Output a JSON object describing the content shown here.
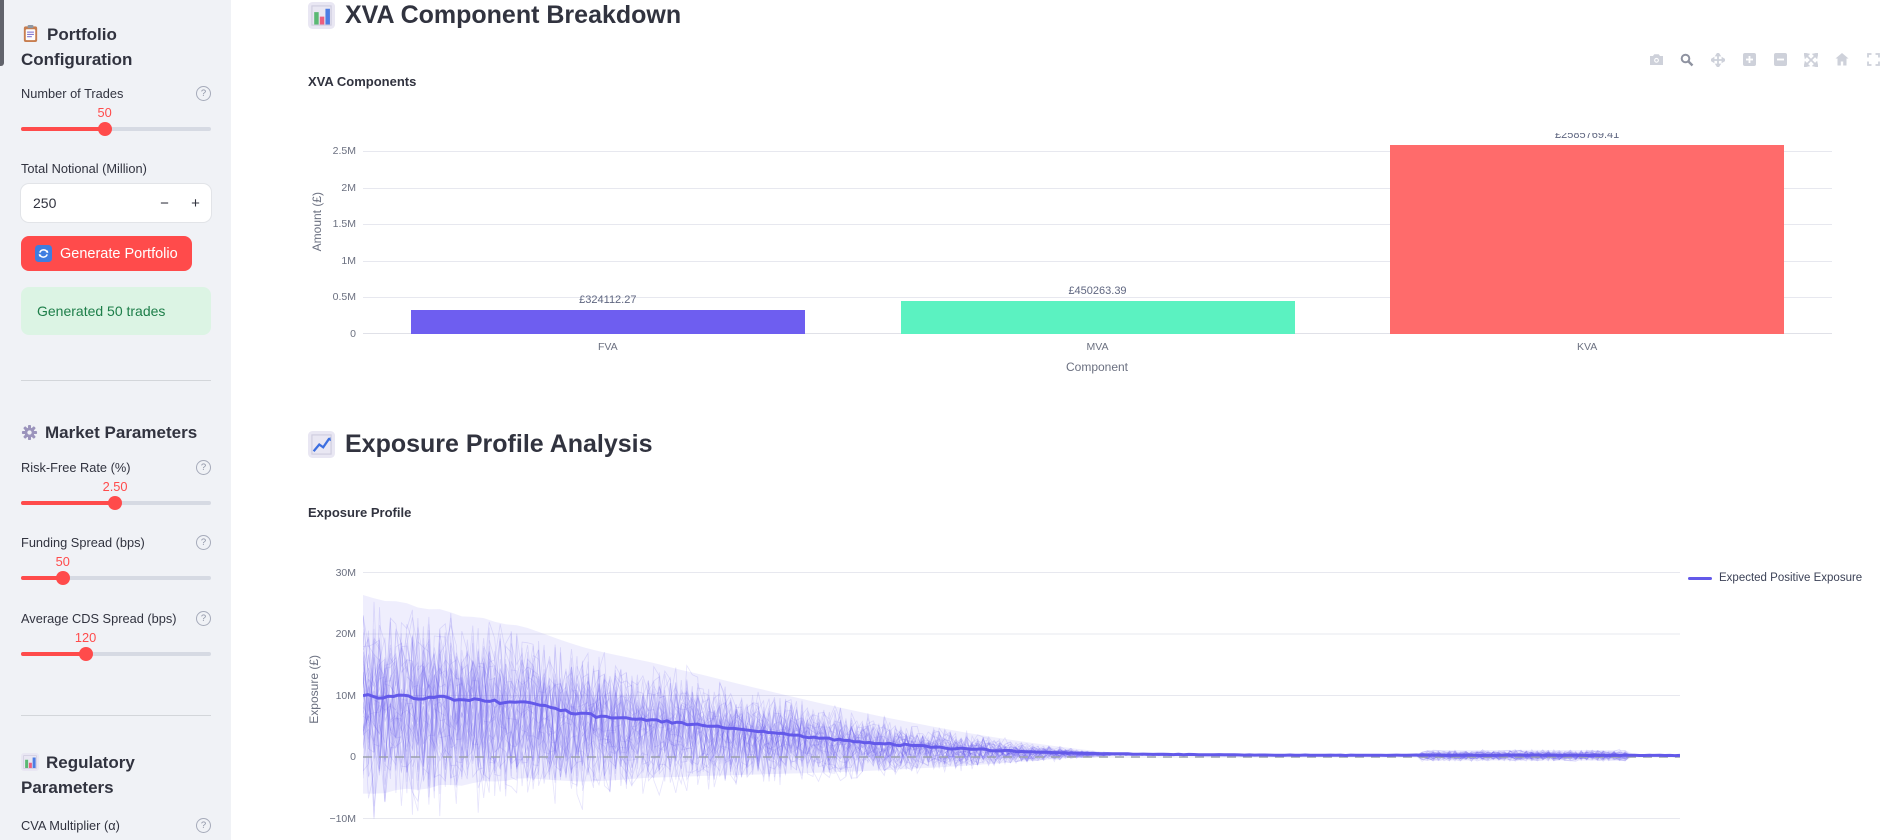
{
  "app": {
    "sidebar_bg": "#f0f2f6",
    "accent_red": "#ff4b4b",
    "text_color": "#31333f",
    "success_bg": "#dcf4e4",
    "success_text_color": "#1d7e49",
    "purple": "#6359e9"
  },
  "sidebar": {
    "section_portfolio": {
      "title": "Portfolio Configuration",
      "icon": "clipboard-icon"
    },
    "trades_slider": {
      "label": "Number of Trades",
      "value": "50",
      "pos_pct": 44
    },
    "notional_input": {
      "label": "Total Notional (Million)",
      "value": "250",
      "minus": "−",
      "plus": "+"
    },
    "generate_button": {
      "label": "Generate Portfolio",
      "icon": "refresh-icon"
    },
    "success": {
      "text": "Generated 50 trades"
    },
    "section_market": {
      "title": "Market Parameters",
      "icon": "gear-icon"
    },
    "rate_slider": {
      "label": "Risk-Free Rate (%)",
      "value": "2.50",
      "pos_pct": 49.5
    },
    "funding_slider": {
      "label": "Funding Spread (bps)",
      "value": "50",
      "pos_pct": 22
    },
    "cds_slider": {
      "label": "Average CDS Spread (bps)",
      "value": "120",
      "pos_pct": 34
    },
    "section_regulatory": {
      "title": "Regulatory Parameters",
      "icon": "bar-chart-icon"
    },
    "cva_label": "CVA Multiplier (α)"
  },
  "main": {
    "heading1": {
      "text": "XVA Component Breakdown",
      "icon": "bar-chart-icon"
    },
    "heading2": {
      "text": "Exposure Profile Analysis",
      "icon": "line-chart-icon"
    },
    "modebar_icons": [
      "camera-icon",
      "zoom-icon",
      "pan-icon",
      "zoom-in-icon",
      "zoom-out-icon",
      "autoscale-icon",
      "home-icon",
      "fullscreen-icon"
    ]
  },
  "chart_data": [
    {
      "type": "bar",
      "title": "XVA Components",
      "categories": [
        "FVA",
        "MVA",
        "KVA"
      ],
      "values": [
        324112.27,
        450263.39,
        2585769.41
      ],
      "value_labels": [
        "£324112.27",
        "£450263.39",
        "£2585769.41"
      ],
      "colors": [
        "#6e5ef0",
        "#5bf2c1",
        "#ff6b6b"
      ],
      "xlabel": "Component",
      "ylabel": "Amount (£)",
      "ylim": [
        0,
        2750000
      ],
      "yticks": [
        "0",
        "0.5M",
        "1M",
        "1.5M",
        "2M",
        "2.5M"
      ],
      "ytick_values": [
        0,
        500000,
        1000000,
        1500000,
        2000000,
        2500000
      ],
      "grid": true,
      "legend": false
    },
    {
      "type": "line",
      "title": "Exposure Profile",
      "ylabel": "Exposure (£)",
      "yticks": [
        "−10M",
        "0",
        "10M",
        "20M",
        "30M"
      ],
      "ytick_values_millions": [
        -10,
        0,
        10,
        20,
        30
      ],
      "ylim_millions": [
        -13,
        32
      ],
      "grid": true,
      "legend_position": "right",
      "zero_line": {
        "style": "dashed",
        "color": "#9aa0ab",
        "value": 0
      },
      "series": [
        {
          "name": "Expected Positive Exposure",
          "color": "#6359e9",
          "f": [
            0,
            0.015,
            0.03,
            0.045,
            0.06,
            0.075,
            0.09,
            0.105,
            0.12,
            0.135,
            0.15,
            0.165,
            0.18,
            0.2,
            0.22,
            0.24,
            0.26,
            0.28,
            0.3,
            0.32,
            0.34,
            0.36,
            0.38,
            0.4,
            0.42,
            0.44,
            0.46,
            0.48,
            0.5,
            0.53,
            0.56,
            0.6,
            0.64,
            0.68,
            0.72,
            0.76,
            0.8,
            0.84,
            0.88,
            0.92,
            0.96,
            1.0
          ],
          "v_millions": [
            10.2,
            9.7,
            10.1,
            9.3,
            9.8,
            9.1,
            9.4,
            8.8,
            9.0,
            8.3,
            7.6,
            7.0,
            6.6,
            6.3,
            6.0,
            5.5,
            5.1,
            4.6,
            4.15,
            3.7,
            3.25,
            2.85,
            2.45,
            2.1,
            1.8,
            1.5,
            1.25,
            1.05,
            0.88,
            0.68,
            0.55,
            0.44,
            0.37,
            0.32,
            0.29,
            0.27,
            0.3,
            0.26,
            0.31,
            0.27,
            0.27,
            0.25
          ]
        }
      ],
      "simulation_band": {
        "description": "Monte-Carlo exposure paths fan (light purple) around EPE",
        "paths": 45,
        "steps": 240,
        "seed": 11,
        "amp0_millions": 17,
        "amp_end_f": 0.58,
        "tail_noise_millions": 0.9,
        "tail_start_f": 0.8,
        "tail_end_f": 0.96,
        "band_color": "rgba(99,88,235,0.10)",
        "path_color": "rgba(99,88,235,0.16)"
      }
    }
  ]
}
